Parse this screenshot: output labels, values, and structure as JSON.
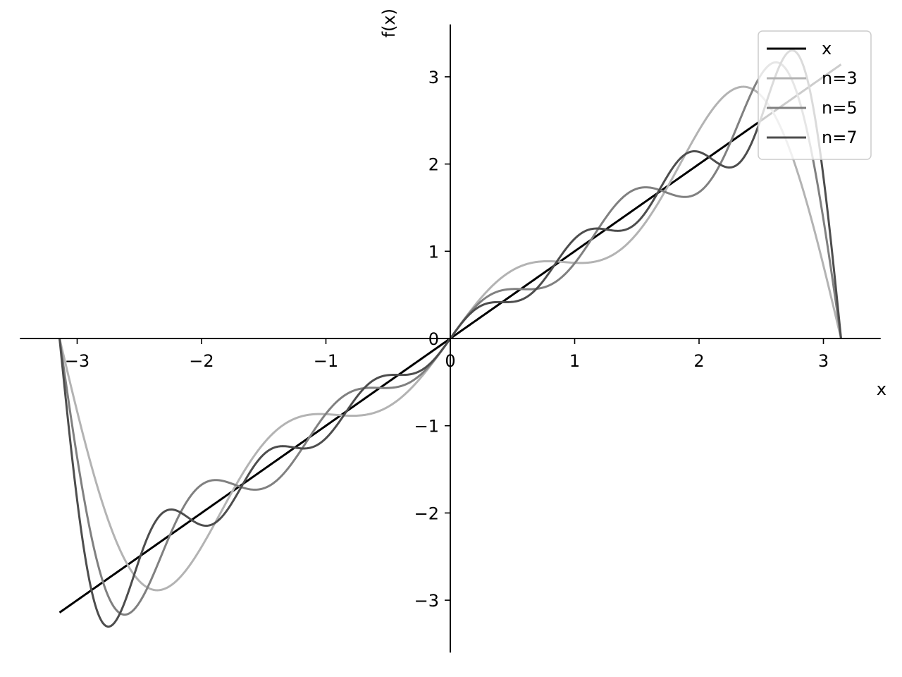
{
  "chart_data": {
    "type": "line",
    "title": "",
    "xlabel": "x",
    "ylabel": "f(x)",
    "xlim": [
      -3.46,
      3.46
    ],
    "ylim": [
      -3.6,
      3.6
    ],
    "xticks": [
      -3,
      -2,
      -1,
      0,
      1,
      2,
      3
    ],
    "xtick_labels": [
      "−3",
      "−2",
      "−1",
      "0",
      "1",
      "2",
      "3"
    ],
    "yticks": [
      -3,
      -2,
      -1,
      0,
      1,
      2,
      3
    ],
    "ytick_labels": [
      "−3",
      "−2",
      "−1",
      "0",
      "1",
      "2",
      "3"
    ],
    "x_domain": [
      -3.14159,
      3.14159
    ],
    "grid": false,
    "legend_placement": "top-right",
    "series": [
      {
        "name": "x",
        "color": "#000000",
        "terms": 0,
        "formula": "x"
      },
      {
        "name": "n=3",
        "color": "#b3b3b3",
        "terms": 3,
        "formula": "partial Fourier sine sum of x with 3 terms"
      },
      {
        "name": "n=5",
        "color": "#808080",
        "terms": 5,
        "formula": "partial Fourier sine sum of x with 5 terms"
      },
      {
        "name": "n=7",
        "color": "#4d4d4d",
        "terms": 7,
        "formula": "partial Fourier sine sum of x with 7 terms"
      }
    ]
  }
}
